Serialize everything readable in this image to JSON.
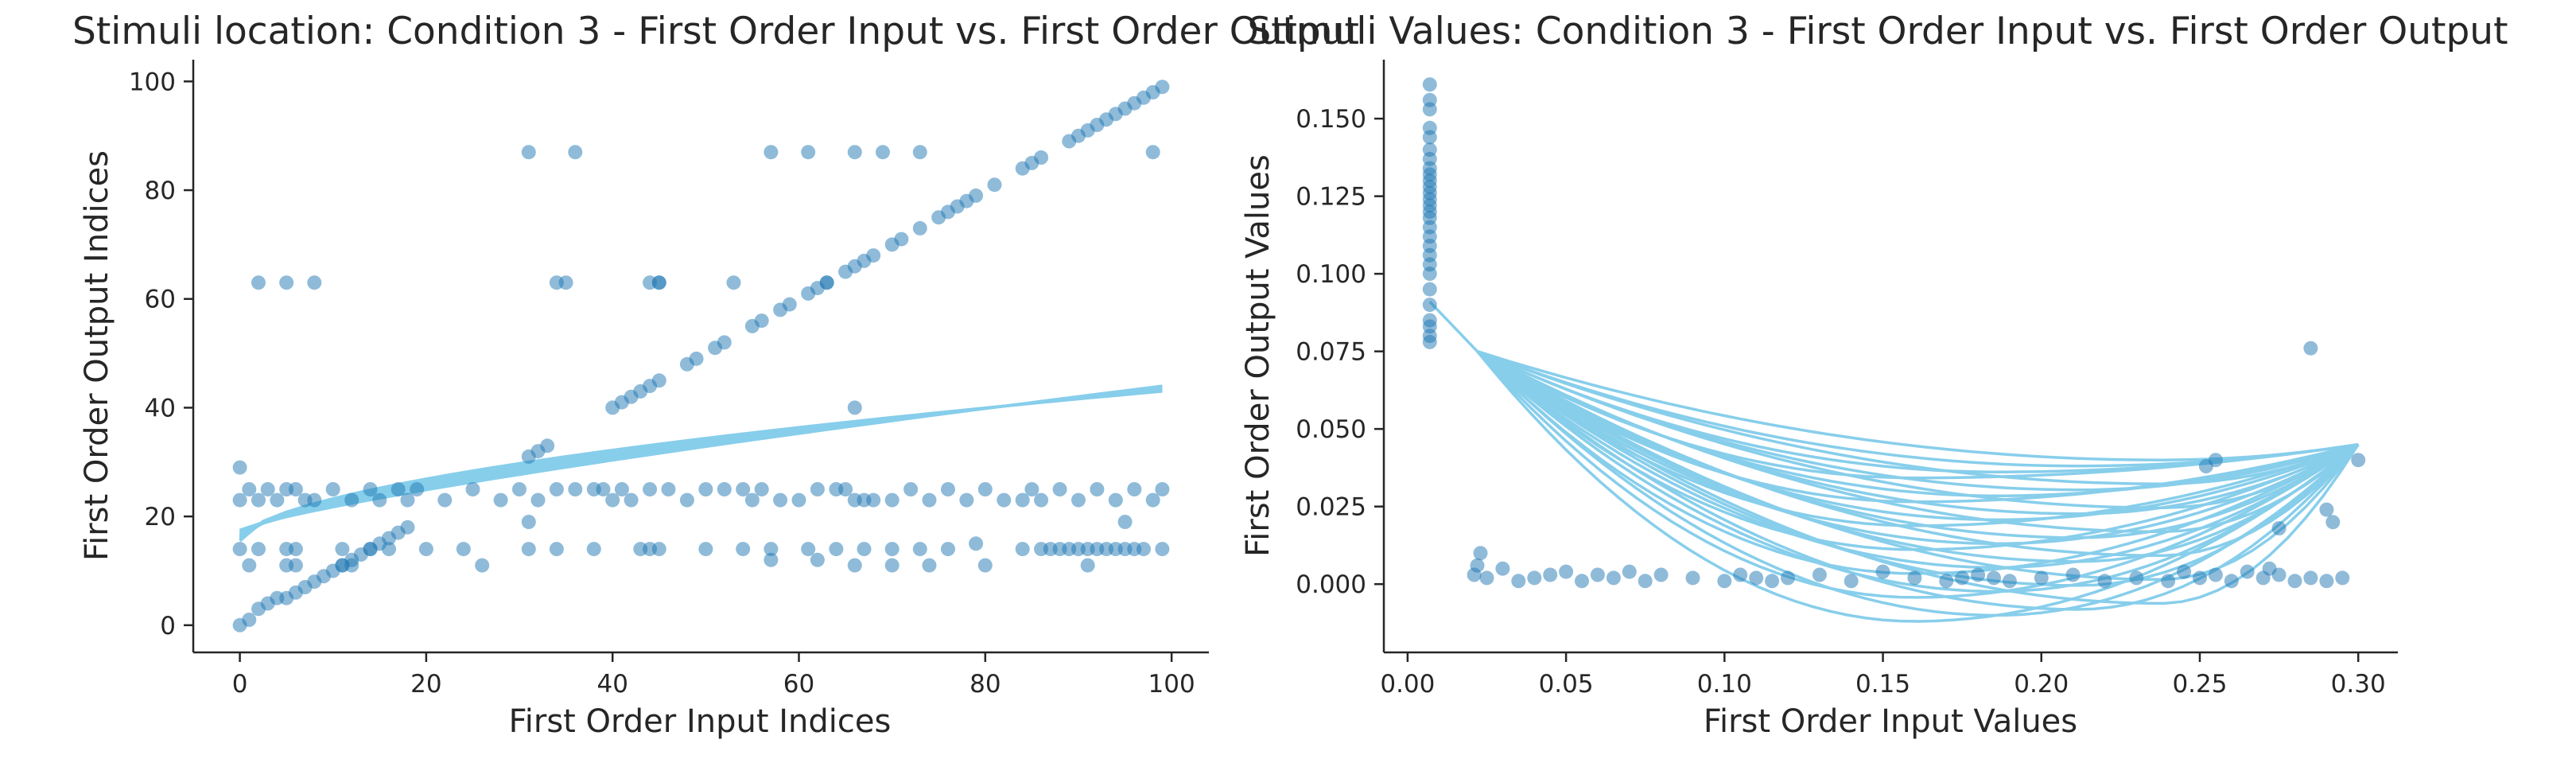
{
  "colors": {
    "point": "#1f77b4",
    "line": "#87ceeb",
    "axis": "#262626"
  },
  "chart_data": [
    {
      "type": "scatter",
      "title": "Stimuli location: Condition 3 - First Order Input vs. First Order Output",
      "xlabel": "First Order Input Indices",
      "ylabel": "First Order Output Indices",
      "xlim": [
        -5,
        104
      ],
      "ylim": [
        -5,
        104
      ],
      "xticks": [
        0,
        20,
        40,
        60,
        80,
        100
      ],
      "yticks": [
        0,
        20,
        40,
        60,
        80,
        100
      ],
      "xtick_labels": [
        "0",
        "20",
        "40",
        "60",
        "80",
        "100"
      ],
      "ytick_labels": [
        "0",
        "20",
        "40",
        "60",
        "80",
        "100"
      ],
      "grid": false,
      "points": {
        "x": [
          0,
          1,
          2,
          3,
          4,
          5,
          6,
          7,
          8,
          9,
          10,
          11,
          12,
          13,
          14,
          15,
          16,
          17,
          18,
          31,
          32,
          33,
          40,
          41,
          42,
          43,
          44,
          45,
          48,
          49,
          51,
          52,
          55,
          56,
          58,
          59,
          61,
          62,
          63,
          65,
          66,
          67,
          68,
          70,
          71,
          73,
          75,
          76,
          77,
          78,
          79,
          81,
          84,
          85,
          86,
          89,
          90,
          91,
          92,
          93,
          94,
          95,
          96,
          97,
          98,
          99,
          0,
          1,
          2,
          3,
          4,
          5,
          6,
          7,
          8,
          10,
          12,
          14,
          15,
          17,
          18,
          19,
          22,
          25,
          28,
          30,
          32,
          34,
          36,
          38,
          39,
          40,
          41,
          42,
          44,
          46,
          48,
          50,
          52,
          54,
          55,
          56,
          58,
          60,
          62,
          64,
          65,
          66,
          67,
          68,
          70,
          72,
          74,
          76,
          78,
          80,
          82,
          84,
          85,
          86,
          88,
          90,
          92,
          94,
          96,
          98,
          99,
          0,
          2,
          5,
          6,
          11,
          14,
          16,
          20,
          24,
          31,
          34,
          38,
          43,
          44,
          45,
          50,
          54,
          57,
          61,
          64,
          67,
          70,
          73,
          76,
          79,
          84,
          86,
          87,
          88,
          89,
          90,
          91,
          92,
          93,
          94,
          95,
          96,
          97,
          99,
          0,
          1,
          5,
          6,
          11,
          12,
          26,
          31,
          57,
          62,
          66,
          70,
          74,
          80,
          91,
          95,
          2,
          5,
          8,
          31,
          35,
          45,
          53,
          57,
          61,
          66,
          69,
          73,
          98,
          34,
          36,
          44,
          45,
          63,
          66
        ],
        "y": [
          0,
          1,
          3,
          4,
          5,
          5,
          6,
          7,
          8,
          9,
          10,
          11,
          12,
          13,
          14,
          15,
          16,
          17,
          18,
          31,
          32,
          33,
          40,
          41,
          42,
          43,
          44,
          45,
          48,
          49,
          51,
          52,
          55,
          56,
          58,
          59,
          61,
          62,
          63,
          65,
          66,
          67,
          68,
          70,
          71,
          73,
          75,
          76,
          77,
          78,
          79,
          81,
          84,
          85,
          86,
          89,
          90,
          91,
          92,
          93,
          94,
          95,
          96,
          97,
          98,
          99,
          23,
          25,
          23,
          25,
          23,
          25,
          25,
          23,
          23,
          25,
          23,
          25,
          23,
          25,
          23,
          25,
          23,
          25,
          23,
          25,
          23,
          25,
          25,
          25,
          25,
          23,
          25,
          23,
          25,
          25,
          23,
          25,
          25,
          25,
          23,
          25,
          23,
          23,
          25,
          25,
          25,
          23,
          23,
          23,
          23,
          25,
          23,
          25,
          23,
          25,
          23,
          23,
          25,
          23,
          25,
          23,
          25,
          23,
          25,
          23,
          25,
          14,
          14,
          14,
          14,
          14,
          14,
          14,
          14,
          14,
          14,
          14,
          14,
          14,
          14,
          14,
          14,
          14,
          14,
          14,
          14,
          14,
          14,
          14,
          14,
          15,
          14,
          14,
          14,
          14,
          14,
          14,
          14,
          14,
          14,
          14,
          14,
          14,
          14,
          14,
          29,
          11,
          11,
          11,
          11,
          11,
          11,
          19,
          12,
          12,
          11,
          11,
          11,
          11,
          11,
          19,
          63,
          63,
          63,
          87,
          63,
          63,
          63,
          87,
          87,
          87,
          87,
          87,
          87,
          63,
          87,
          63,
          63,
          63,
          40
        ]
      },
      "curves": {
        "count": 12,
        "x_range": [
          0,
          99
        ],
        "start_y": [
          15.5,
          17.5
        ],
        "end_y": [
          43,
          44
        ]
      }
    },
    {
      "type": "scatter",
      "title": "Stimuli Values: Condition 3 - First Order Input vs. First Order Output",
      "xlabel": "First Order Input Values",
      "ylabel": "First Order Output Values",
      "xlim": [
        -0.0075,
        0.3125
      ],
      "ylim": [
        -0.022,
        0.169
      ],
      "xticks": [
        0.0,
        0.05,
        0.1,
        0.15,
        0.2,
        0.25,
        0.3
      ],
      "yticks": [
        0.0,
        0.025,
        0.05,
        0.075,
        0.1,
        0.125,
        0.15
      ],
      "xtick_labels": [
        "0.00",
        "0.05",
        "0.10",
        "0.15",
        "0.20",
        "0.25",
        "0.30"
      ],
      "ytick_labels": [
        "0.000",
        "0.025",
        "0.050",
        "0.075",
        "0.100",
        "0.125",
        "0.150"
      ],
      "grid": false,
      "points": {
        "x": [
          0.007,
          0.007,
          0.007,
          0.007,
          0.007,
          0.007,
          0.007,
          0.007,
          0.007,
          0.007,
          0.007,
          0.007,
          0.007,
          0.007,
          0.007,
          0.007,
          0.007,
          0.007,
          0.007,
          0.007,
          0.007,
          0.007,
          0.007,
          0.007,
          0.007,
          0.007,
          0.007,
          0.007,
          0.021,
          0.022,
          0.023,
          0.025,
          0.03,
          0.035,
          0.04,
          0.045,
          0.05,
          0.055,
          0.06,
          0.065,
          0.07,
          0.075,
          0.08,
          0.09,
          0.1,
          0.105,
          0.11,
          0.115,
          0.12,
          0.13,
          0.14,
          0.15,
          0.16,
          0.17,
          0.175,
          0.18,
          0.185,
          0.19,
          0.2,
          0.21,
          0.22,
          0.23,
          0.24,
          0.245,
          0.25,
          0.255,
          0.26,
          0.265,
          0.27,
          0.275,
          0.28,
          0.285,
          0.29,
          0.295,
          0.285,
          0.255,
          0.3,
          0.29,
          0.292,
          0.275,
          0.252,
          0.272
        ],
        "y": [
          0.078,
          0.08,
          0.085,
          0.09,
          0.095,
          0.1,
          0.103,
          0.106,
          0.109,
          0.112,
          0.115,
          0.118,
          0.12,
          0.122,
          0.124,
          0.126,
          0.128,
          0.13,
          0.132,
          0.134,
          0.137,
          0.14,
          0.144,
          0.147,
          0.153,
          0.156,
          0.161,
          0.083,
          0.003,
          0.006,
          0.01,
          0.002,
          0.005,
          0.001,
          0.002,
          0.003,
          0.004,
          0.001,
          0.003,
          0.002,
          0.004,
          0.001,
          0.003,
          0.002,
          0.001,
          0.003,
          0.002,
          0.001,
          0.002,
          0.003,
          0.001,
          0.004,
          0.002,
          0.001,
          0.002,
          0.003,
          0.002,
          0.001,
          0.002,
          0.003,
          0.001,
          0.002,
          0.001,
          0.004,
          0.002,
          0.003,
          0.001,
          0.004,
          0.002,
          0.003,
          0.001,
          0.002,
          0.001,
          0.002,
          0.076,
          0.04,
          0.04,
          0.024,
          0.02,
          0.018,
          0.038,
          0.005
        ]
      },
      "curves": {
        "count": 28,
        "start_x": 0.022,
        "end_x": 0.3,
        "start_y": 0.075,
        "end_y": 0.045,
        "min_y_range": [
          -0.012,
          0.04
        ],
        "min_x_range": [
          0.16,
          0.26
        ]
      }
    }
  ]
}
